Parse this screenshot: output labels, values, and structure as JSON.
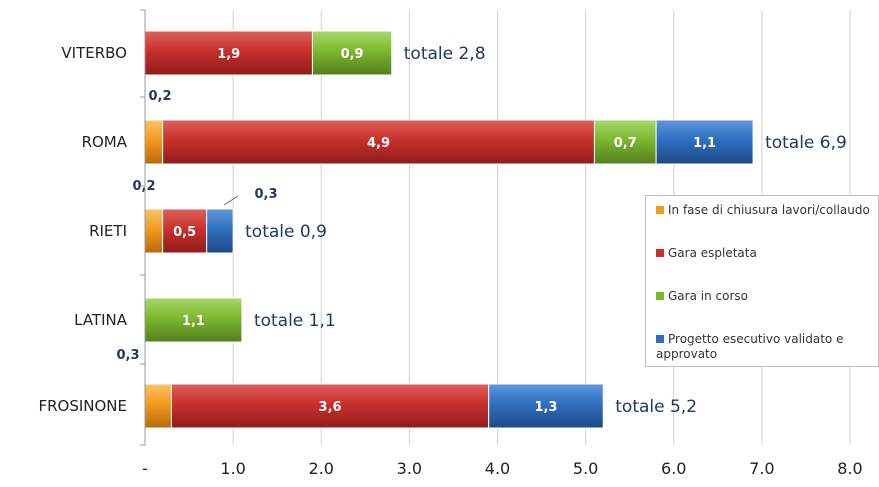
{
  "chart_data": {
    "type": "bar",
    "orientation": "horizontal",
    "stacked": true,
    "categories": [
      "VITERBO",
      "ROMA",
      "RIETI",
      "LATINA",
      "FROSINONE"
    ],
    "series": [
      {
        "name": "In fase di chiusura lavori/collaudo",
        "color": "#f39a1f",
        "values": [
          0,
          0.2,
          0.2,
          0,
          0.3
        ],
        "labels": [
          "",
          "0,2",
          "0,2",
          "",
          "0,3"
        ]
      },
      {
        "name": "Gara espletata",
        "color": "#c8312d",
        "values": [
          1.9,
          4.9,
          0.5,
          0,
          3.6
        ],
        "labels": [
          "1,9",
          "4,9",
          "0,5",
          "",
          "3,6"
        ]
      },
      {
        "name": "Gara in corso",
        "color": "#7cb82f",
        "values": [
          0.9,
          0.7,
          0,
          1.1,
          0
        ],
        "labels": [
          "0,9",
          "0,7",
          "",
          "1,1",
          ""
        ]
      },
      {
        "name": "Progetto esecutivo validato e approvato",
        "color": "#2f6fc0",
        "values": [
          0,
          1.1,
          0.3,
          0,
          1.3
        ],
        "labels": [
          "",
          "1,1",
          "0,3",
          "",
          "1,3"
        ]
      }
    ],
    "totals": [
      2.8,
      6.9,
      0.9,
      1.1,
      5.2
    ],
    "total_prefix": "totale",
    "total_labels": [
      "2,8",
      "6,9",
      "0,9",
      "1,1",
      "5,2"
    ],
    "xlim": [
      0,
      8
    ],
    "xticks": [
      0,
      1,
      2,
      3,
      4,
      5,
      6,
      7,
      8
    ],
    "xtick_labels": [
      "-",
      "1.0",
      "2.0",
      "3.0",
      "4.0",
      "5.0",
      "6.0",
      "7.0",
      "8.0"
    ],
    "grid": true,
    "legend_position": "right"
  }
}
